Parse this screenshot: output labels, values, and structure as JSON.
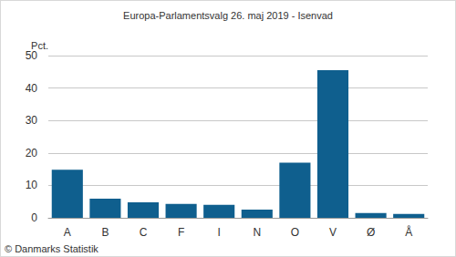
{
  "chart_data": {
    "type": "bar",
    "title": "Europa-Parlamentsvalg 26. maj 2019 - Isenvad",
    "ylabel": "Pct.",
    "categories": [
      "A",
      "B",
      "C",
      "F",
      "I",
      "N",
      "O",
      "V",
      "Ø",
      "Å"
    ],
    "values": [
      14.8,
      5.9,
      4.8,
      4.3,
      4.0,
      2.5,
      17.0,
      45.5,
      1.5,
      1.2
    ],
    "color": "#0f5f8e",
    "ylim": [
      0,
      50
    ],
    "yticks": [
      0,
      10,
      20,
      30,
      40,
      50
    ],
    "grid": true,
    "annotations": [
      "© Danmarks Statistik"
    ]
  }
}
